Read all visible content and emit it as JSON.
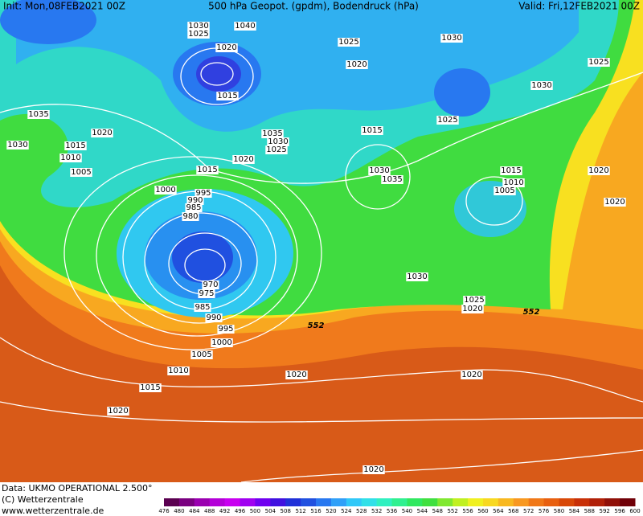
{
  "header": {
    "init": "Init: Mon,08FEB2021 00Z",
    "title": "500 hPa Geopot. (gpdm), Bodendruck (hPa)",
    "valid": "Valid: Fri,12FEB2021 00Z"
  },
  "isobar_labels": [
    "1030",
    "1025",
    "1040",
    "1025",
    "1030",
    "1025",
    "1020",
    "1020",
    "1030",
    "1015",
    "1035",
    "1015",
    "1025",
    "1020",
    "1035",
    "1030",
    "1030",
    "1015",
    "1025",
    "1010",
    "1020",
    "1020",
    "1005",
    "1015",
    "1030",
    "1015",
    "1035",
    "1010",
    "1005",
    "1000",
    "995",
    "990",
    "985",
    "980",
    "1020",
    "1030",
    "970",
    "975",
    "985",
    "990",
    "995",
    "1000",
    "1025",
    "1020",
    "1005",
    "1010",
    "1020",
    "1020",
    "1015",
    "1020",
    "1020"
  ],
  "contour_labels": [
    "552",
    "552"
  ],
  "colorbar": {
    "levels": [
      476,
      480,
      484,
      488,
      492,
      496,
      500,
      504,
      508,
      512,
      516,
      520,
      524,
      528,
      532,
      536,
      540,
      544,
      548,
      552,
      556,
      560,
      564,
      568,
      572,
      576,
      580,
      584,
      588,
      592,
      596,
      600
    ],
    "colors": [
      "#5a0050",
      "#7a0080",
      "#9a00b0",
      "#b400d8",
      "#c800f0",
      "#a000f0",
      "#7000f0",
      "#4010e0",
      "#2030d8",
      "#2050e0",
      "#2878f0",
      "#30a0f8",
      "#30c8f8",
      "#30e0e8",
      "#30f0c0",
      "#30f090",
      "#30e860",
      "#40e040",
      "#80e830",
      "#c0f020",
      "#f0f020",
      "#f8d820",
      "#f8b820",
      "#f89820",
      "#f07818",
      "#e86010",
      "#d84808",
      "#c83008",
      "#b02008",
      "#901008",
      "#700008"
    ]
  },
  "footer": {
    "source": "Data: UKMO OPERATIONAL 2.500°",
    "copyright": "(C) Wetterzentrale",
    "url": "www.wetterzentrale.de"
  }
}
